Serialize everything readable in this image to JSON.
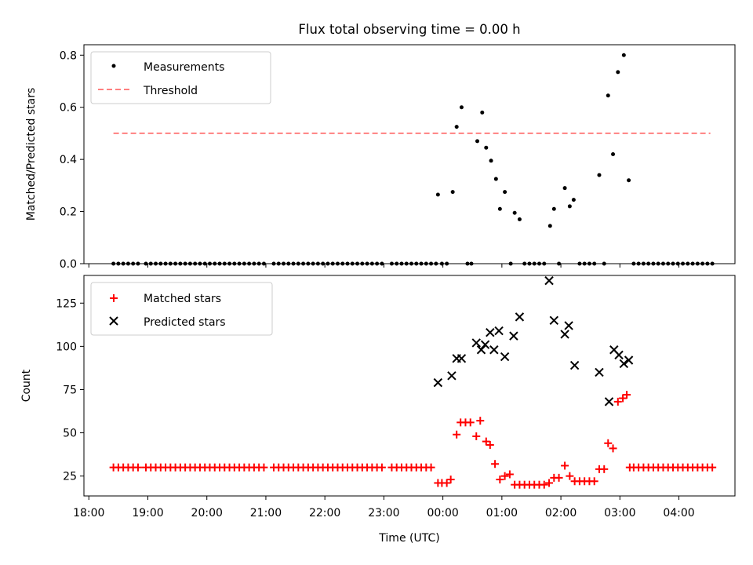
{
  "title": "Flux total observing time = 0.00 h",
  "chart_data": [
    {
      "type": "scatter",
      "ylabel": "Matched/Predicted stars",
      "xlim": [
        "17:55",
        "04:57"
      ],
      "ylim": [
        0.0,
        0.84
      ],
      "yticks": [
        "0.0",
        "0.2",
        "0.4",
        "0.6",
        "0.8"
      ],
      "grid": false,
      "legend": "top-left",
      "threshold": {
        "name": "Threshold",
        "value": 0.5,
        "x_range": [
          "18:25",
          "04:32"
        ],
        "color": "#ff8080"
      },
      "series": [
        {
          "name": "Measurements",
          "color": "#000000",
          "points": [
            [
              "18:25",
              0
            ],
            [
              "18:30",
              0
            ],
            [
              "18:35",
              0
            ],
            [
              "18:40",
              0
            ],
            [
              "18:45",
              0
            ],
            [
              "18:50",
              0
            ],
            [
              "18:58",
              0
            ],
            [
              "19:03",
              0
            ],
            [
              "19:08",
              0
            ],
            [
              "19:13",
              0
            ],
            [
              "19:18",
              0
            ],
            [
              "19:23",
              0
            ],
            [
              "19:28",
              0
            ],
            [
              "19:33",
              0
            ],
            [
              "19:38",
              0
            ],
            [
              "19:43",
              0
            ],
            [
              "19:48",
              0
            ],
            [
              "19:53",
              0
            ],
            [
              "19:58",
              0
            ],
            [
              "20:03",
              0
            ],
            [
              "20:08",
              0
            ],
            [
              "20:13",
              0
            ],
            [
              "20:18",
              0
            ],
            [
              "20:23",
              0
            ],
            [
              "20:28",
              0
            ],
            [
              "20:33",
              0
            ],
            [
              "20:38",
              0
            ],
            [
              "20:43",
              0
            ],
            [
              "20:48",
              0
            ],
            [
              "20:53",
              0
            ],
            [
              "20:58",
              0
            ],
            [
              "21:08",
              0
            ],
            [
              "21:13",
              0
            ],
            [
              "21:18",
              0
            ],
            [
              "21:23",
              0
            ],
            [
              "21:28",
              0
            ],
            [
              "21:33",
              0
            ],
            [
              "21:38",
              0
            ],
            [
              "21:43",
              0
            ],
            [
              "21:48",
              0
            ],
            [
              "21:53",
              0
            ],
            [
              "21:58",
              0
            ],
            [
              "22:03",
              0
            ],
            [
              "22:08",
              0
            ],
            [
              "22:13",
              0
            ],
            [
              "22:18",
              0
            ],
            [
              "22:23",
              0
            ],
            [
              "22:28",
              0
            ],
            [
              "22:33",
              0
            ],
            [
              "22:38",
              0
            ],
            [
              "22:43",
              0
            ],
            [
              "22:48",
              0
            ],
            [
              "22:53",
              0
            ],
            [
              "22:58",
              0
            ],
            [
              "23:08",
              0
            ],
            [
              "23:13",
              0
            ],
            [
              "23:18",
              0
            ],
            [
              "23:23",
              0
            ],
            [
              "23:28",
              0
            ],
            [
              "23:33",
              0
            ],
            [
              "23:38",
              0
            ],
            [
              "23:43",
              0
            ],
            [
              "23:48",
              0
            ],
            [
              "23:53",
              0
            ],
            [
              "23:55",
              0.265
            ],
            [
              "23:59",
              0
            ],
            [
              "00:04",
              0
            ],
            [
              "00:10",
              0.275
            ],
            [
              "00:14",
              0.525
            ],
            [
              "00:19",
              0.6
            ],
            [
              "00:25",
              0
            ],
            [
              "00:29",
              0
            ],
            [
              "00:35",
              0.47
            ],
            [
              "00:40",
              0.58
            ],
            [
              "00:44",
              0.445
            ],
            [
              "00:49",
              0.395
            ],
            [
              "00:54",
              0.325
            ],
            [
              "00:58",
              0.21
            ],
            [
              "01:03",
              0.275
            ],
            [
              "01:09",
              0
            ],
            [
              "01:13",
              0.195
            ],
            [
              "01:18",
              0.17
            ],
            [
              "01:23",
              0
            ],
            [
              "01:28",
              0
            ],
            [
              "01:33",
              0
            ],
            [
              "01:38",
              0
            ],
            [
              "01:43",
              0
            ],
            [
              "01:49",
              0.145
            ],
            [
              "01:53",
              0.21
            ],
            [
              "01:58",
              0
            ],
            [
              "02:04",
              0.29
            ],
            [
              "02:09",
              0.22
            ],
            [
              "02:13",
              0.245
            ],
            [
              "02:19",
              0
            ],
            [
              "02:24",
              0
            ],
            [
              "02:29",
              0
            ],
            [
              "02:34",
              0
            ],
            [
              "02:39",
              0.34
            ],
            [
              "02:44",
              0
            ],
            [
              "02:48",
              0.645
            ],
            [
              "02:53",
              0.42
            ],
            [
              "02:58",
              0.735
            ],
            [
              "03:04",
              0.8
            ],
            [
              "03:09",
              0.32
            ],
            [
              "03:14",
              0
            ],
            [
              "03:19",
              0
            ],
            [
              "03:24",
              0
            ],
            [
              "03:29",
              0
            ],
            [
              "03:34",
              0
            ],
            [
              "03:39",
              0
            ],
            [
              "03:44",
              0
            ],
            [
              "03:49",
              0
            ],
            [
              "03:54",
              0
            ],
            [
              "03:59",
              0
            ],
            [
              "04:04",
              0
            ],
            [
              "04:09",
              0
            ],
            [
              "04:14",
              0
            ],
            [
              "04:19",
              0
            ],
            [
              "04:24",
              0
            ],
            [
              "04:29",
              0
            ],
            [
              "04:34",
              0
            ]
          ]
        }
      ]
    },
    {
      "type": "scatter",
      "xlabel": "Time (UTC)",
      "ylabel": "Count",
      "xlim": [
        "17:55",
        "04:57"
      ],
      "ylim": [
        13.5,
        141
      ],
      "yticks": [
        "25",
        "50",
        "75",
        "100",
        "125"
      ],
      "xticks": [
        "18:00",
        "19:00",
        "20:00",
        "21:00",
        "22:00",
        "23:00",
        "00:00",
        "01:00",
        "02:00",
        "03:00",
        "04:00"
      ],
      "grid": false,
      "legend": "top-left",
      "series": [
        {
          "name": "Matched stars",
          "marker": "+",
          "color": "#ff0000",
          "points": [
            [
              "18:25",
              30
            ],
            [
              "18:30",
              30
            ],
            [
              "18:35",
              30
            ],
            [
              "18:40",
              30
            ],
            [
              "18:45",
              30
            ],
            [
              "18:50",
              30
            ],
            [
              "18:58",
              30
            ],
            [
              "19:03",
              30
            ],
            [
              "19:08",
              30
            ],
            [
              "19:13",
              30
            ],
            [
              "19:18",
              30
            ],
            [
              "19:23",
              30
            ],
            [
              "19:28",
              30
            ],
            [
              "19:33",
              30
            ],
            [
              "19:38",
              30
            ],
            [
              "19:43",
              30
            ],
            [
              "19:48",
              30
            ],
            [
              "19:53",
              30
            ],
            [
              "19:58",
              30
            ],
            [
              "20:03",
              30
            ],
            [
              "20:08",
              30
            ],
            [
              "20:13",
              30
            ],
            [
              "20:18",
              30
            ],
            [
              "20:23",
              30
            ],
            [
              "20:28",
              30
            ],
            [
              "20:33",
              30
            ],
            [
              "20:38",
              30
            ],
            [
              "20:43",
              30
            ],
            [
              "20:48",
              30
            ],
            [
              "20:53",
              30
            ],
            [
              "20:58",
              30
            ],
            [
              "21:08",
              30
            ],
            [
              "21:13",
              30
            ],
            [
              "21:18",
              30
            ],
            [
              "21:23",
              30
            ],
            [
              "21:28",
              30
            ],
            [
              "21:33",
              30
            ],
            [
              "21:38",
              30
            ],
            [
              "21:43",
              30
            ],
            [
              "21:48",
              30
            ],
            [
              "21:53",
              30
            ],
            [
              "21:58",
              30
            ],
            [
              "22:03",
              30
            ],
            [
              "22:08",
              30
            ],
            [
              "22:13",
              30
            ],
            [
              "22:18",
              30
            ],
            [
              "22:23",
              30
            ],
            [
              "22:28",
              30
            ],
            [
              "22:33",
              30
            ],
            [
              "22:38",
              30
            ],
            [
              "22:43",
              30
            ],
            [
              "22:48",
              30
            ],
            [
              "22:53",
              30
            ],
            [
              "22:58",
              30
            ],
            [
              "23:08",
              30
            ],
            [
              "23:13",
              30
            ],
            [
              "23:18",
              30
            ],
            [
              "23:23",
              30
            ],
            [
              "23:28",
              30
            ],
            [
              "23:33",
              30
            ],
            [
              "23:38",
              30
            ],
            [
              "23:43",
              30
            ],
            [
              "23:48",
              30
            ],
            [
              "23:55",
              21
            ],
            [
              "23:59",
              21
            ],
            [
              "00:04",
              21
            ],
            [
              "00:08",
              23
            ],
            [
              "00:14",
              49
            ],
            [
              "00:18",
              56
            ],
            [
              "00:23",
              56
            ],
            [
              "00:28",
              56
            ],
            [
              "00:34",
              48
            ],
            [
              "00:38",
              57
            ],
            [
              "00:44",
              45
            ],
            [
              "00:48",
              43
            ],
            [
              "00:53",
              32
            ],
            [
              "00:58",
              23
            ],
            [
              "01:03",
              25
            ],
            [
              "01:08",
              26
            ],
            [
              "01:13",
              20
            ],
            [
              "01:18",
              20
            ],
            [
              "01:23",
              20
            ],
            [
              "01:28",
              20
            ],
            [
              "01:33",
              20
            ],
            [
              "01:38",
              20
            ],
            [
              "01:43",
              20
            ],
            [
              "01:48",
              21
            ],
            [
              "01:53",
              24
            ],
            [
              "01:58",
              24
            ],
            [
              "02:04",
              31
            ],
            [
              "02:09",
              25
            ],
            [
              "02:14",
              22
            ],
            [
              "02:19",
              22
            ],
            [
              "02:24",
              22
            ],
            [
              "02:29",
              22
            ],
            [
              "02:34",
              22
            ],
            [
              "02:39",
              29
            ],
            [
              "02:44",
              29
            ],
            [
              "02:48",
              44
            ],
            [
              "02:53",
              41
            ],
            [
              "02:58",
              68
            ],
            [
              "03:03",
              70
            ],
            [
              "03:07",
              72
            ],
            [
              "03:10",
              30
            ],
            [
              "03:14",
              30
            ],
            [
              "03:19",
              30
            ],
            [
              "03:24",
              30
            ],
            [
              "03:29",
              30
            ],
            [
              "03:34",
              30
            ],
            [
              "03:39",
              30
            ],
            [
              "03:44",
              30
            ],
            [
              "03:49",
              30
            ],
            [
              "03:54",
              30
            ],
            [
              "03:59",
              30
            ],
            [
              "04:04",
              30
            ],
            [
              "04:09",
              30
            ],
            [
              "04:14",
              30
            ],
            [
              "04:19",
              30
            ],
            [
              "04:24",
              30
            ],
            [
              "04:29",
              30
            ],
            [
              "04:34",
              30
            ]
          ]
        },
        {
          "name": "Predicted stars",
          "marker": "x",
          "color": "#000000",
          "points": [
            [
              "23:55",
              79
            ],
            [
              "00:09",
              83
            ],
            [
              "00:14",
              93
            ],
            [
              "00:19",
              93
            ],
            [
              "00:34",
              102
            ],
            [
              "00:39",
              98
            ],
            [
              "00:43",
              101
            ],
            [
              "00:48",
              108
            ],
            [
              "00:52",
              98
            ],
            [
              "00:57",
              109
            ],
            [
              "01:03",
              94
            ],
            [
              "01:12",
              106
            ],
            [
              "01:18",
              117
            ],
            [
              "01:48",
              138
            ],
            [
              "01:53",
              115
            ],
            [
              "02:04",
              107
            ],
            [
              "02:08",
              112
            ],
            [
              "02:14",
              89
            ],
            [
              "02:39",
              85
            ],
            [
              "02:49",
              68
            ],
            [
              "02:54",
              98
            ],
            [
              "02:59",
              95
            ],
            [
              "03:04",
              90
            ],
            [
              "03:09",
              92
            ]
          ]
        }
      ]
    }
  ]
}
